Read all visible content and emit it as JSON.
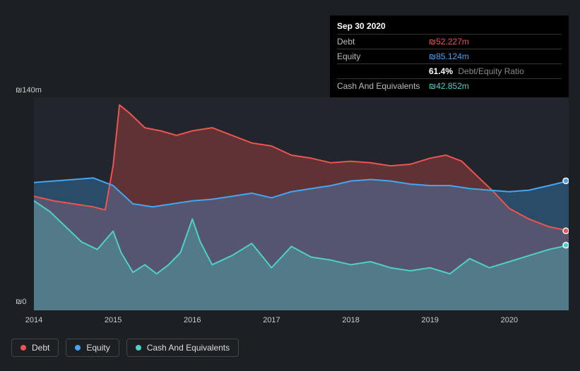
{
  "currency_symbol": "₪",
  "tooltip": {
    "date": "Sep 30 2020",
    "debt_label": "Debt",
    "debt_value": "₪52.227m",
    "equity_label": "Equity",
    "equity_value": "₪85.124m",
    "ratio_pct": "61.4%",
    "ratio_label": "Debt/Equity Ratio",
    "cash_label": "Cash And Equivalents",
    "cash_value": "₪42.852m"
  },
  "chart": {
    "type": "area",
    "background_color": "#22262c",
    "page_background": "#1c2025",
    "axis_text_color": "#cccccc",
    "ymax": 140,
    "ymin": 0,
    "ylabel_top": "₪140m",
    "ylabel_bot": "₪0",
    "x_start_year": 2014,
    "x_end_year_fraction": 2020.75,
    "xtick_years": [
      2014,
      2015,
      2016,
      2017,
      2018,
      2019,
      2020
    ],
    "series": {
      "debt": {
        "label": "Debt",
        "stroke": "#ef5350",
        "fill": "#ef5350",
        "fill_opacity": 0.3,
        "line_width": 2,
        "points": [
          [
            2014.0,
            75
          ],
          [
            2014.25,
            72
          ],
          [
            2014.5,
            70
          ],
          [
            2014.75,
            68
          ],
          [
            2014.9,
            66
          ],
          [
            2015.0,
            95
          ],
          [
            2015.08,
            135
          ],
          [
            2015.2,
            130
          ],
          [
            2015.4,
            120
          ],
          [
            2015.6,
            118
          ],
          [
            2015.8,
            115
          ],
          [
            2016.0,
            118
          ],
          [
            2016.25,
            120
          ],
          [
            2016.5,
            115
          ],
          [
            2016.75,
            110
          ],
          [
            2017.0,
            108
          ],
          [
            2017.25,
            102
          ],
          [
            2017.5,
            100
          ],
          [
            2017.75,
            97
          ],
          [
            2018.0,
            98
          ],
          [
            2018.25,
            97
          ],
          [
            2018.5,
            95
          ],
          [
            2018.75,
            96
          ],
          [
            2019.0,
            100
          ],
          [
            2019.2,
            102
          ],
          [
            2019.4,
            98
          ],
          [
            2019.6,
            88
          ],
          [
            2019.8,
            78
          ],
          [
            2020.0,
            67
          ],
          [
            2020.25,
            60
          ],
          [
            2020.5,
            55
          ],
          [
            2020.75,
            52.227
          ]
        ]
      },
      "equity": {
        "label": "Equity",
        "stroke": "#42a5f5",
        "fill": "#42a5f5",
        "fill_opacity": 0.3,
        "line_width": 2,
        "points": [
          [
            2014.0,
            84
          ],
          [
            2014.25,
            85
          ],
          [
            2014.5,
            86
          ],
          [
            2014.75,
            87
          ],
          [
            2015.0,
            82
          ],
          [
            2015.25,
            70
          ],
          [
            2015.5,
            68
          ],
          [
            2015.75,
            70
          ],
          [
            2016.0,
            72
          ],
          [
            2016.25,
            73
          ],
          [
            2016.5,
            75
          ],
          [
            2016.75,
            77
          ],
          [
            2017.0,
            74
          ],
          [
            2017.25,
            78
          ],
          [
            2017.5,
            80
          ],
          [
            2017.75,
            82
          ],
          [
            2018.0,
            85
          ],
          [
            2018.25,
            86
          ],
          [
            2018.5,
            85
          ],
          [
            2018.75,
            83
          ],
          [
            2019.0,
            82
          ],
          [
            2019.25,
            82
          ],
          [
            2019.5,
            80
          ],
          [
            2019.75,
            79
          ],
          [
            2020.0,
            78
          ],
          [
            2020.25,
            79
          ],
          [
            2020.5,
            82
          ],
          [
            2020.75,
            85.124
          ]
        ]
      },
      "cash": {
        "label": "Cash And Equivalents",
        "stroke": "#4dd0c7",
        "fill": "#4dd0c7",
        "fill_opacity": 0.3,
        "line_width": 2,
        "points": [
          [
            2014.0,
            72
          ],
          [
            2014.2,
            65
          ],
          [
            2014.4,
            55
          ],
          [
            2014.6,
            45
          ],
          [
            2014.8,
            40
          ],
          [
            2015.0,
            52
          ],
          [
            2015.1,
            38
          ],
          [
            2015.25,
            25
          ],
          [
            2015.4,
            30
          ],
          [
            2015.55,
            24
          ],
          [
            2015.7,
            30
          ],
          [
            2015.85,
            38
          ],
          [
            2016.0,
            60
          ],
          [
            2016.1,
            45
          ],
          [
            2016.25,
            30
          ],
          [
            2016.5,
            36
          ],
          [
            2016.75,
            44
          ],
          [
            2017.0,
            28
          ],
          [
            2017.25,
            42
          ],
          [
            2017.5,
            35
          ],
          [
            2017.75,
            33
          ],
          [
            2018.0,
            30
          ],
          [
            2018.25,
            32
          ],
          [
            2018.5,
            28
          ],
          [
            2018.75,
            26
          ],
          [
            2019.0,
            28
          ],
          [
            2019.25,
            24
          ],
          [
            2019.5,
            34
          ],
          [
            2019.75,
            28
          ],
          [
            2020.0,
            32
          ],
          [
            2020.25,
            36
          ],
          [
            2020.5,
            40
          ],
          [
            2020.75,
            42.852
          ]
        ]
      }
    },
    "end_markers": {
      "debt": {
        "color": "#ef5350",
        "y": 52.227
      },
      "equity": {
        "color": "#42a5f5",
        "y": 85.124
      },
      "cash": {
        "color": "#4dd0c7",
        "y": 42.852
      }
    }
  },
  "legend": {
    "debt": "Debt",
    "equity": "Equity",
    "cash": "Cash And Equivalents",
    "border_color": "#444444",
    "text_color": "#dddddd"
  }
}
